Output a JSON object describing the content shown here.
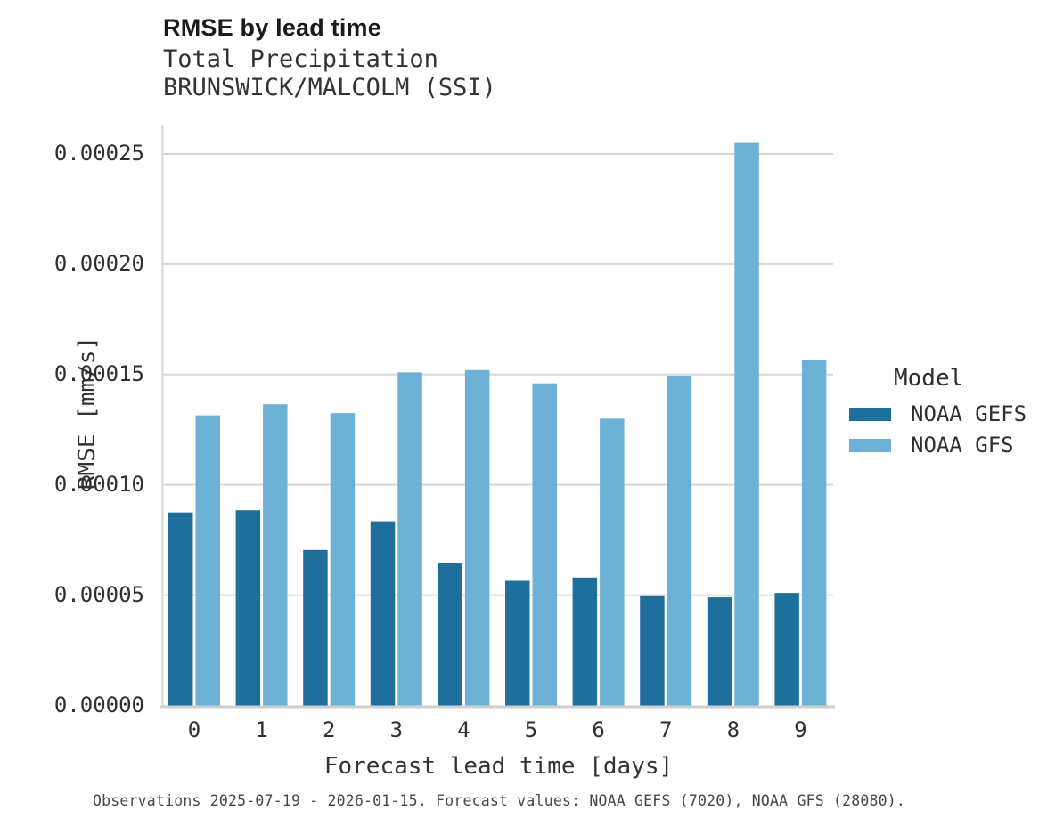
{
  "page": {
    "background": "#ffffff"
  },
  "header": {
    "title": "RMSE by lead time",
    "subtitle_line1": "Total Precipitation",
    "subtitle_line2": "BRUNSWICK/MALCOLM (SSI)"
  },
  "legend": {
    "title": "Model",
    "items": [
      {
        "label": "NOAA GEFS",
        "color": "#1f6f9c"
      },
      {
        "label": "NOAA GFS",
        "color": "#6eb1d7"
      }
    ]
  },
  "footer": {
    "note": "Observations 2025-07-19 - 2026-01-15. Forecast values: NOAA GEFS (7020), NOAA GFS (28080)."
  },
  "chart_data": {
    "type": "bar",
    "title": "RMSE by lead time",
    "subtitle": "Total Precipitation — BRUNSWICK/MALCOLM (SSI)",
    "xlabel": "Forecast lead time [days]",
    "ylabel": "RMSE [mm/s]",
    "categories": [
      "0",
      "1",
      "2",
      "3",
      "4",
      "5",
      "6",
      "7",
      "8",
      "9"
    ],
    "series": [
      {
        "name": "NOAA GEFS",
        "color": "#1f6f9c",
        "values": [
          8.75e-05,
          8.85e-05,
          7.05e-05,
          8.35e-05,
          6.45e-05,
          5.65e-05,
          5.8e-05,
          4.95e-05,
          4.9e-05,
          5.1e-05
        ]
      },
      {
        "name": "NOAA GFS",
        "color": "#6eb1d7",
        "values": [
          0.0001315,
          0.0001365,
          0.0001325,
          0.000151,
          0.000152,
          0.000146,
          0.00013,
          0.0001495,
          0.000255,
          0.0001565
        ]
      }
    ],
    "ylim": [
      0,
      0.0002633
    ],
    "yticks": [
      0.0,
      5e-05,
      0.0001,
      0.00015,
      0.0002,
      0.00025
    ],
    "ytick_labels": [
      "0.00000",
      "0.00005",
      "0.00010",
      "0.00015",
      "0.00020",
      "0.00025"
    ],
    "grid": true,
    "legend_title": "Model",
    "legend_position": "right",
    "footnote": "Observations 2025-07-19 - 2026-01-15. Forecast values: NOAA GEFS (7020), NOAA GFS (28080)."
  }
}
